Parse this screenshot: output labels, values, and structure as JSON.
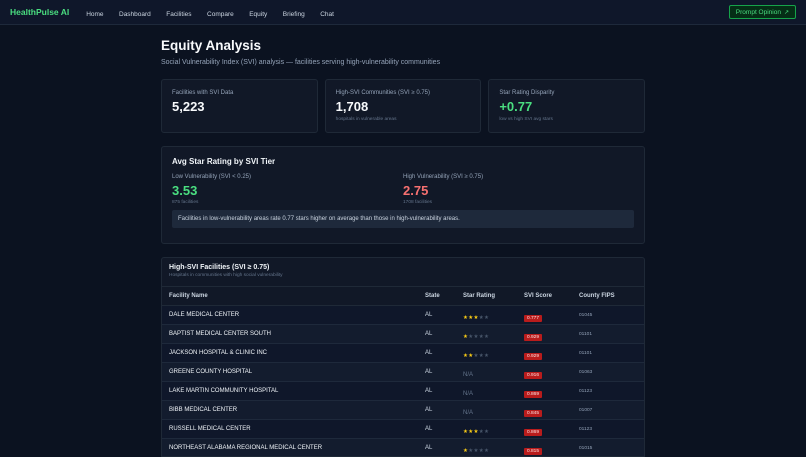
{
  "nav": {
    "brand": "HealthPulse AI",
    "links": [
      "Home",
      "Dashboard",
      "Facilities",
      "Compare",
      "Equity",
      "Briefing",
      "Chat"
    ],
    "opinion_label": "Prompt Opinion"
  },
  "page": {
    "title": "Equity Analysis",
    "subtitle": "Social Vulnerability Index (SVI) analysis — facilities serving high-vulnerability communities"
  },
  "stats": [
    {
      "label": "Facilities with SVI Data",
      "value": "5,223",
      "note": ""
    },
    {
      "label": "High-SVI Communities (SVI ≥ 0.75)",
      "value": "1,708",
      "note": "hospitals in vulnerable areas"
    },
    {
      "label": "Star Rating Disparity",
      "value": "+0.77",
      "note": "low vs high SVI avg stars"
    }
  ],
  "svi_panel": {
    "title": "Avg Star Rating by SVI Tier",
    "low": {
      "label": "Low Vulnerability (SVI < 0.25)",
      "value": "3.53",
      "count": "875 facilities"
    },
    "high": {
      "label": "High Vulnerability (SVI ≥ 0.75)",
      "value": "2.75",
      "count": "1708 facilities"
    },
    "insight": "Facilities in low-vulnerability areas rate 0.77 stars higher on average than those in high-vulnerability areas."
  },
  "table": {
    "title": "High-SVI Facilities (SVI ≥ 0.75)",
    "subtitle": "Hospitals in communities with high social vulnerability",
    "columns": [
      "Facility Name",
      "State",
      "Star Rating",
      "SVI Score",
      "County FIPS"
    ],
    "na_label": "N/A",
    "rows": [
      {
        "name": "DALE MEDICAL CENTER",
        "state": "AL",
        "stars": 3,
        "svi": "0.777",
        "fips": "01045"
      },
      {
        "name": "BAPTIST MEDICAL CENTER SOUTH",
        "state": "AL",
        "stars": 1,
        "svi": "0.929",
        "fips": "01101"
      },
      {
        "name": "JACKSON HOSPITAL & CLINIC INC",
        "state": "AL",
        "stars": 2,
        "svi": "0.929",
        "fips": "01101"
      },
      {
        "name": "GREENE COUNTY HOSPITAL",
        "state": "AL",
        "stars": null,
        "svi": "0.916",
        "fips": "01063"
      },
      {
        "name": "LAKE MARTIN COMMUNITY HOSPITAL",
        "state": "AL",
        "stars": null,
        "svi": "0.869",
        "fips": "01123"
      },
      {
        "name": "BIBB MEDICAL CENTER",
        "state": "AL",
        "stars": null,
        "svi": "0.845",
        "fips": "01007"
      },
      {
        "name": "RUSSELL MEDICAL CENTER",
        "state": "AL",
        "stars": 3,
        "svi": "0.869",
        "fips": "01123"
      },
      {
        "name": "NORTHEAST ALABAMA REGIONAL MEDICAL CENTER",
        "state": "AL",
        "stars": 1,
        "svi": "0.815",
        "fips": "01015"
      }
    ]
  }
}
